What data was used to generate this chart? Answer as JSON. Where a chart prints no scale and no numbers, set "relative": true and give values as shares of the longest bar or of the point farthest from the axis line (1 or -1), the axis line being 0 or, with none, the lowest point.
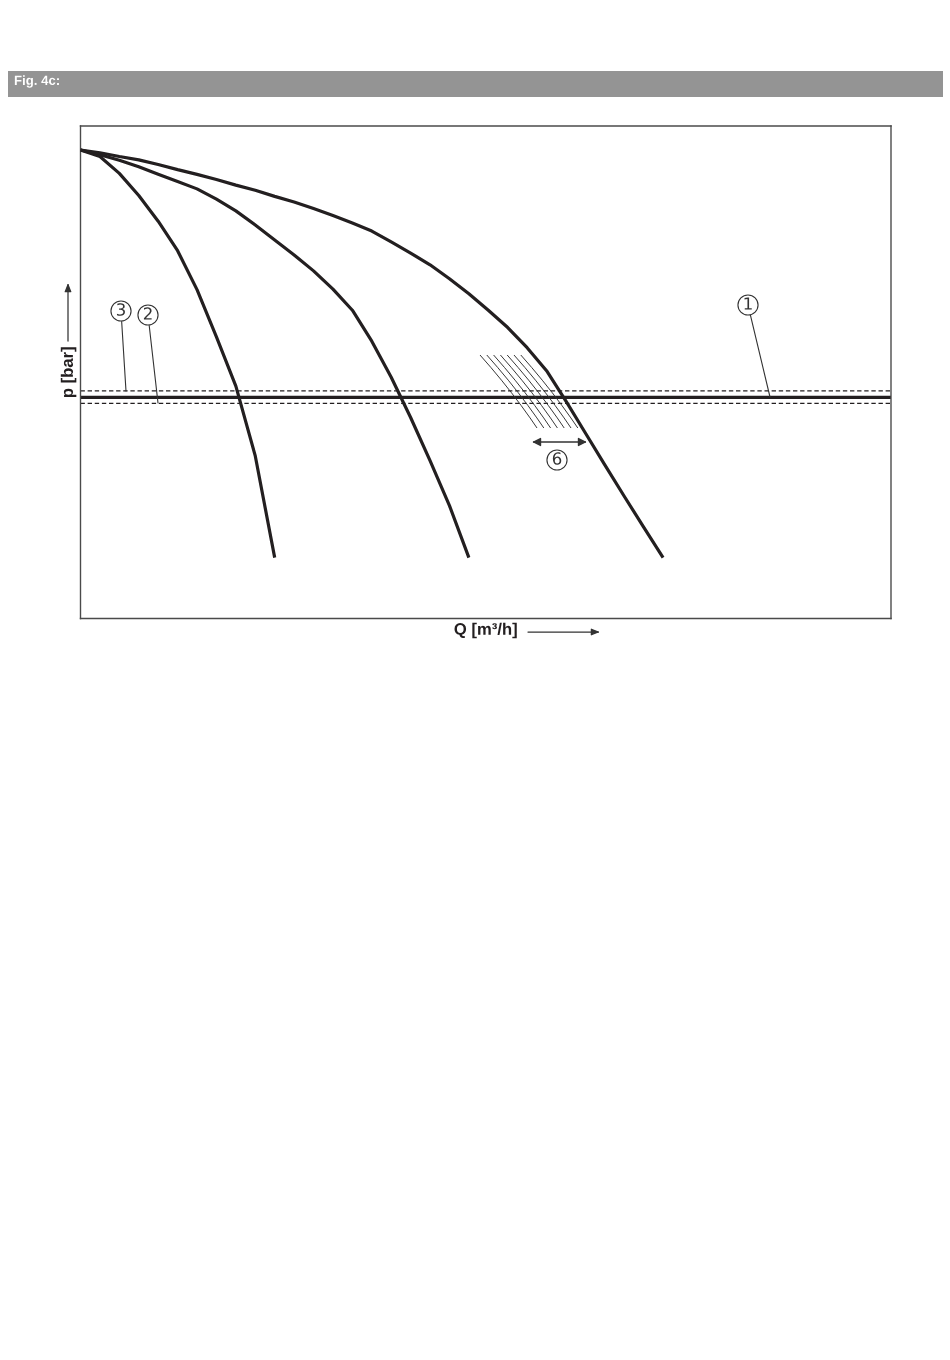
{
  "chart_data": {
    "type": "line",
    "title": "Fig. 4c:",
    "xlabel": "Q [m³/h]",
    "ylabel": "p [bar]",
    "relative": true,
    "line_style": "solid",
    "categories": [
      null,
      null,
      null,
      null,
      null,
      null,
      null,
      null,
      null,
      null,
      null,
      null,
      null,
      null,
      null,
      null,
      null,
      null,
      null,
      null,
      null,
      null,
      null,
      null,
      null,
      null,
      null,
      null,
      null,
      null,
      null,
      null,
      null,
      null,
      null,
      null,
      null,
      null,
      null,
      null,
      null,
      null
    ],
    "series": [
      {
        "color": "#231f20",
        "values": [
          1.0,
          0.986,
          0.95,
          0.903,
          0.848,
          0.785,
          0.702,
          0.601,
          0.496,
          0.347,
          0.13,
          null,
          null,
          null,
          null,
          null,
          null,
          null,
          null,
          null,
          null,
          null,
          null,
          null,
          null,
          null,
          null,
          null,
          null,
          null,
          null,
          null,
          null,
          null,
          null,
          null,
          null,
          null,
          null,
          null,
          null,
          null
        ]
      },
      {
        "color": "#231f20",
        "values": [
          1.0,
          0.99,
          0.978,
          0.964,
          0.948,
          0.933,
          0.917,
          0.895,
          0.87,
          0.84,
          0.808,
          0.776,
          0.742,
          0.703,
          0.658,
          0.592,
          0.515,
          0.429,
          0.337,
          0.241,
          0.13,
          null,
          null,
          null,
          null,
          null,
          null,
          null,
          null,
          null,
          null,
          null,
          null,
          null,
          null,
          null,
          null,
          null,
          null,
          null,
          null,
          null
        ]
      },
      {
        "color": "#231f20",
        "values": [
          1.0,
          0.994,
          0.986,
          0.979,
          0.969,
          0.958,
          0.948,
          0.937,
          0.925,
          0.914,
          0.901,
          0.889,
          0.875,
          0.86,
          0.844,
          0.827,
          0.804,
          0.78,
          0.755,
          0.725,
          0.693,
          0.658,
          0.621,
          0.578,
          0.529,
          0.464,
          0.396,
          0.328,
          0.261,
          0.195,
          0.13,
          null,
          null,
          null,
          null,
          null,
          null,
          null,
          null,
          null,
          null,
          null
        ]
      }
    ],
    "ref_lines": [
      {
        "axis": "y",
        "value": 0.486,
        "color": "#231f20",
        "line_style": "dashed"
      },
      {
        "axis": "y",
        "value": 0.472,
        "color": "#231f20",
        "line_style": "solid"
      },
      {
        "axis": "y",
        "value": 0.459,
        "color": "#231f20",
        "line_style": "dashed"
      }
    ],
    "annotations": [
      "1",
      "2",
      "3",
      "6"
    ]
  }
}
